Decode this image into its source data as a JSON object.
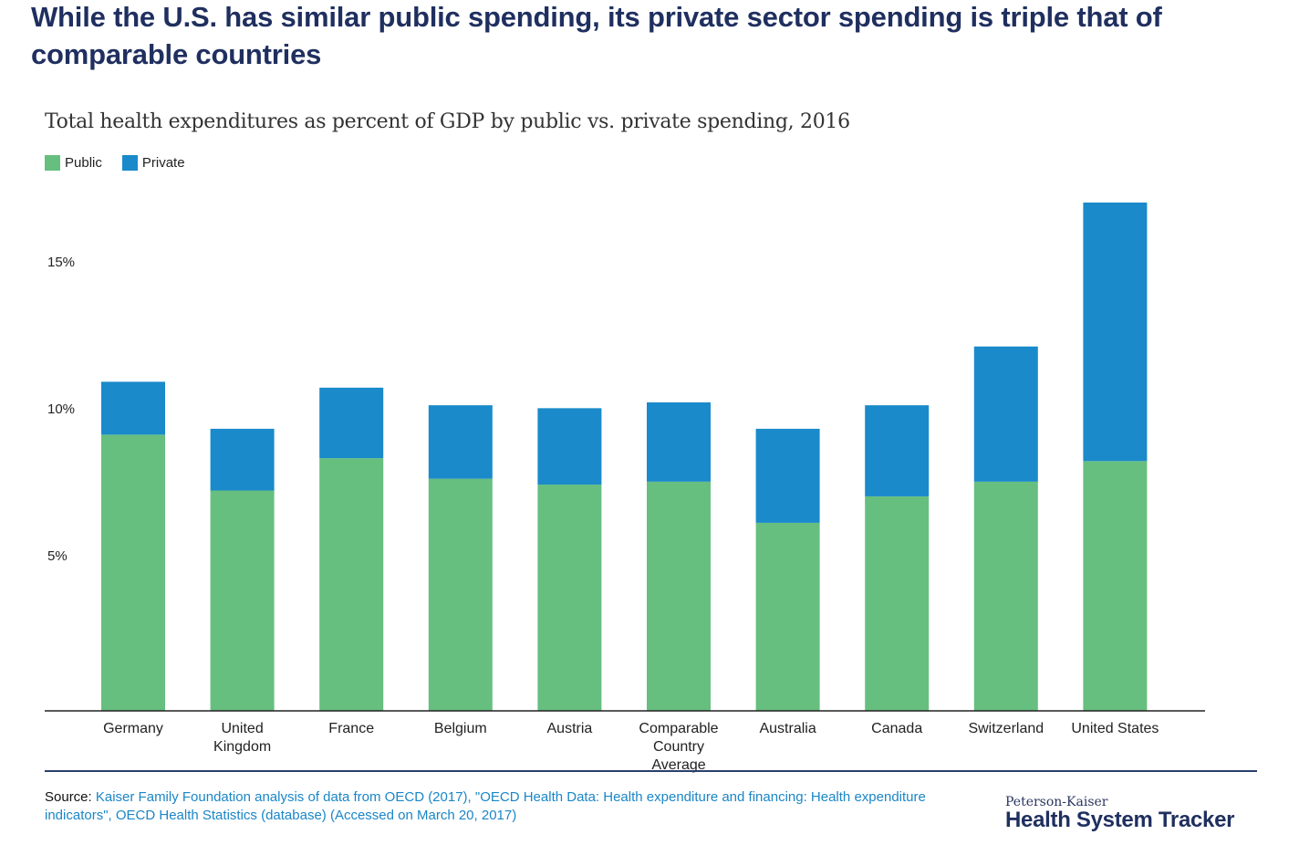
{
  "headline": "While the U.S. has similar public spending, its private sector spending is triple that of comparable countries",
  "colors": {
    "public": "#66bf7f",
    "private": "#1a8acb",
    "headline": "#1f2f5f",
    "source_link": "#1a86c7"
  },
  "chart_data": {
    "type": "bar",
    "stacked": true,
    "title": "Total health expenditures as percent of GDP by public vs. private spending, 2016",
    "xlabel": "",
    "ylabel": "",
    "ylim": [
      0,
      18
    ],
    "yticks": [
      5,
      10,
      15
    ],
    "ytick_labels": [
      "5%",
      "10%",
      "15%"
    ],
    "grid": false,
    "legend_position": "top-left",
    "categories": [
      "Germany",
      "United Kingdom",
      "France",
      "Belgium",
      "Austria",
      "Comparable Country Average",
      "Australia",
      "Canada",
      "Switzerland",
      "United States"
    ],
    "category_labels": [
      [
        "Germany"
      ],
      [
        "United",
        "Kingdom"
      ],
      [
        "France"
      ],
      [
        "Belgium"
      ],
      [
        "Austria"
      ],
      [
        "Comparable",
        "Country",
        "Average"
      ],
      [
        "Australia"
      ],
      [
        "Canada"
      ],
      [
        "Switzerland"
      ],
      [
        "United States"
      ]
    ],
    "series": [
      {
        "name": "Public",
        "color": "#66bf7f",
        "values": [
          9.4,
          7.5,
          8.6,
          7.9,
          7.7,
          7.8,
          6.4,
          7.3,
          7.8,
          8.5
        ]
      },
      {
        "name": "Private",
        "color": "#1a8acb",
        "values": [
          1.8,
          2.1,
          2.4,
          2.5,
          2.6,
          2.7,
          3.2,
          3.1,
          4.6,
          8.8
        ]
      }
    ]
  },
  "source": {
    "label": "Source:",
    "text": "Kaiser Family Foundation analysis of data from OECD (2017), \"OECD Health Data: Health expenditure and financing: Health expenditure indicators\", OECD Health Statistics (database) (Accessed on March 20, 2017)"
  },
  "brand": {
    "top": "Peterson-Kaiser",
    "main": "Health System Tracker"
  }
}
